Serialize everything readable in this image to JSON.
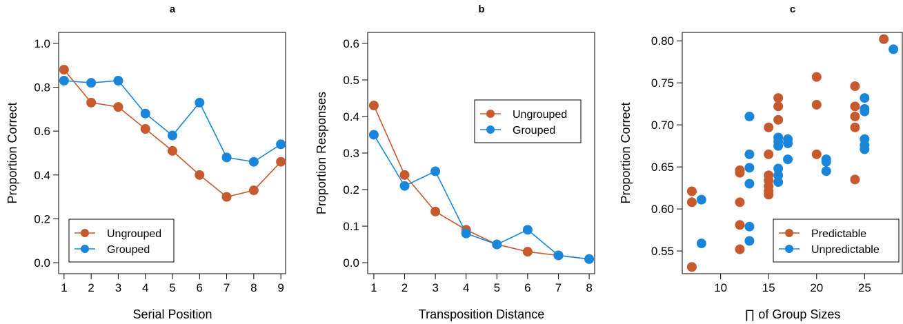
{
  "colors": {
    "ungrouped": "#C65A2E",
    "grouped": "#1A86D9"
  },
  "chart_data": [
    {
      "panel": "a",
      "type": "line",
      "title": "a",
      "xlabel": "Serial Position",
      "ylabel": "Proportion Correct",
      "x": [
        1,
        2,
        3,
        4,
        5,
        6,
        7,
        8,
        9
      ],
      "xticks": [
        1,
        2,
        3,
        4,
        5,
        6,
        7,
        8,
        9
      ],
      "xtick_labels": [
        "1",
        "2",
        "3",
        "4",
        "5",
        "6",
        "7",
        "8",
        "9"
      ],
      "yticks": [
        0.0,
        0.2,
        0.4,
        0.6,
        0.8,
        1.0
      ],
      "ytick_labels": [
        "0.0",
        "0.2",
        "0.4",
        "0.6",
        "0.8",
        "1.0"
      ],
      "xlim": [
        0.8,
        9.2
      ],
      "ylim": [
        -0.05,
        1.05
      ],
      "legend_position": "bottom-left",
      "series": [
        {
          "name": "Ungrouped",
          "color_key": "ungrouped",
          "values": [
            0.88,
            0.73,
            0.71,
            0.61,
            0.51,
            0.4,
            0.3,
            0.33,
            0.46
          ]
        },
        {
          "name": "Grouped",
          "color_key": "grouped",
          "values": [
            0.83,
            0.82,
            0.83,
            0.68,
            0.58,
            0.73,
            0.48,
            0.46,
            0.54
          ]
        }
      ]
    },
    {
      "panel": "b",
      "type": "line",
      "title": "b",
      "xlabel": "Transposition Distance",
      "ylabel": "Proportion Responses",
      "x": [
        1,
        2,
        3,
        4,
        5,
        6,
        7,
        8
      ],
      "xticks": [
        1,
        2,
        3,
        4,
        5,
        6,
        7,
        8
      ],
      "xtick_labels": [
        "1",
        "2",
        "3",
        "4",
        "5",
        "6",
        "7",
        "8"
      ],
      "yticks": [
        0.0,
        0.1,
        0.2,
        0.3,
        0.4,
        0.5,
        0.6
      ],
      "ytick_labels": [
        "0.0",
        "0.1",
        "0.2",
        "0.3",
        "0.4",
        "0.5",
        "0.6"
      ],
      "xlim": [
        0.8,
        8.2
      ],
      "ylim": [
        -0.03,
        0.63
      ],
      "legend_position": "top-right",
      "series": [
        {
          "name": "Ungrouped",
          "color_key": "ungrouped",
          "values": [
            0.43,
            0.24,
            0.14,
            0.09,
            0.05,
            0.03,
            0.02,
            0.01
          ]
        },
        {
          "name": "Grouped",
          "color_key": "grouped",
          "values": [
            0.35,
            0.21,
            0.25,
            0.08,
            0.05,
            0.09,
            0.02,
            0.01
          ]
        }
      ]
    },
    {
      "panel": "c",
      "type": "scatter",
      "title": "c",
      "xlabel": "∏ of Group Sizes",
      "ylabel": "Proportion Correct",
      "xticks": [
        10,
        15,
        20,
        25
      ],
      "xtick_labels": [
        "10",
        "15",
        "20",
        "25"
      ],
      "yticks": [
        0.55,
        0.6,
        0.65,
        0.7,
        0.75,
        0.8
      ],
      "ytick_labels": [
        "0.55",
        "0.60",
        "0.65",
        "0.70",
        "0.75",
        "0.80"
      ],
      "xlim": [
        6.0,
        29.0
      ],
      "ylim": [
        0.523,
        0.81
      ],
      "legend_position": "bottom-right",
      "series": [
        {
          "name": "Predictable",
          "color_key": "ungrouped",
          "points": [
            [
              7,
              0.621
            ],
            [
              7,
              0.608
            ],
            [
              7,
              0.531
            ],
            [
              12,
              0.646
            ],
            [
              12,
              0.643
            ],
            [
              12,
              0.608
            ],
            [
              12,
              0.581
            ],
            [
              12,
              0.552
            ],
            [
              15,
              0.697
            ],
            [
              15,
              0.665
            ],
            [
              15,
              0.64
            ],
            [
              15,
              0.634
            ],
            [
              15,
              0.627
            ],
            [
              15,
              0.621
            ],
            [
              15,
              0.617
            ],
            [
              16,
              0.732
            ],
            [
              16,
              0.722
            ],
            [
              16,
              0.706
            ],
            [
              20,
              0.757
            ],
            [
              20,
              0.724
            ],
            [
              20,
              0.665
            ],
            [
              24,
              0.746
            ],
            [
              24,
              0.722
            ],
            [
              24,
              0.71
            ],
            [
              24,
              0.697
            ],
            [
              24,
              0.635
            ],
            [
              27,
              0.802
            ]
          ]
        },
        {
          "name": "Unpredictable",
          "color_key": "grouped",
          "points": [
            [
              8,
              0.611
            ],
            [
              8,
              0.559
            ],
            [
              13,
              0.71
            ],
            [
              13,
              0.665
            ],
            [
              13,
              0.649
            ],
            [
              13,
              0.63
            ],
            [
              13,
              0.579
            ],
            [
              13,
              0.562
            ],
            [
              16,
              0.685
            ],
            [
              16,
              0.68
            ],
            [
              16,
              0.675
            ],
            [
              16,
              0.648
            ],
            [
              16,
              0.64
            ],
            [
              16,
              0.632
            ],
            [
              17,
              0.683
            ],
            [
              17,
              0.678
            ],
            [
              17,
              0.659
            ],
            [
              21,
              0.659
            ],
            [
              21,
              0.656
            ],
            [
              21,
              0.645
            ],
            [
              25,
              0.732
            ],
            [
              25,
              0.719
            ],
            [
              25,
              0.716
            ],
            [
              25,
              0.683
            ],
            [
              25,
              0.676
            ],
            [
              25,
              0.671
            ],
            [
              28,
              0.79
            ]
          ]
        }
      ]
    }
  ]
}
